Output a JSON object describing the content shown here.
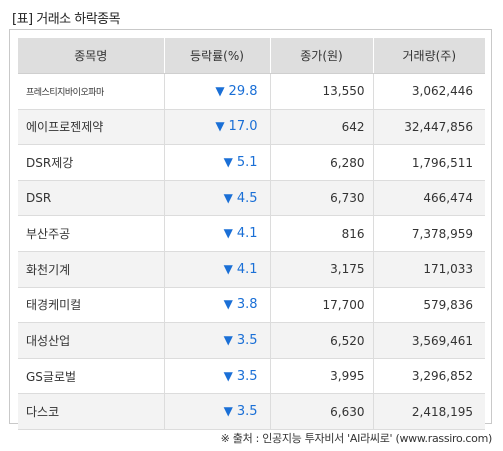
{
  "title": "[표] 거래소 하락종목",
  "headers": [
    "종목명",
    "등락률(%)",
    "종가(원)",
    "거래량(주)"
  ],
  "down_marker": "▼",
  "rows": [
    {
      "name": "프레스티지바이오파마",
      "rate": "29.8",
      "price": "13,550",
      "volume": "3,062,446"
    },
    {
      "name": "에이프로젠제약",
      "rate": "17.0",
      "price": "642",
      "volume": "32,447,856"
    },
    {
      "name": "DSR제강",
      "rate": "5.1",
      "price": "6,280",
      "volume": "1,796,511"
    },
    {
      "name": "DSR",
      "rate": "4.5",
      "price": "6,730",
      "volume": "466,474"
    },
    {
      "name": "부산주공",
      "rate": "4.1",
      "price": "816",
      "volume": "7,378,959"
    },
    {
      "name": "화천기계",
      "rate": "4.1",
      "price": "3,175",
      "volume": "171,033"
    },
    {
      "name": "태경케미컬",
      "rate": "3.8",
      "price": "17,700",
      "volume": "579,836"
    },
    {
      "name": "대성산업",
      "rate": "3.5",
      "price": "6,520",
      "volume": "3,569,461"
    },
    {
      "name": "GS글로벌",
      "rate": "3.5",
      "price": "3,995",
      "volume": "3,296,852"
    },
    {
      "name": "다스코",
      "rate": "3.5",
      "price": "6,630",
      "volume": "2,418,195"
    }
  ],
  "footer": "※ 출처 : 인공지능 투자비서 'AI라씨로' (www.rassiro.com)",
  "colors": {
    "down": "#1a6fd6",
    "header_bg": "#dedede",
    "stripe_bg": "#f3f3f3"
  }
}
